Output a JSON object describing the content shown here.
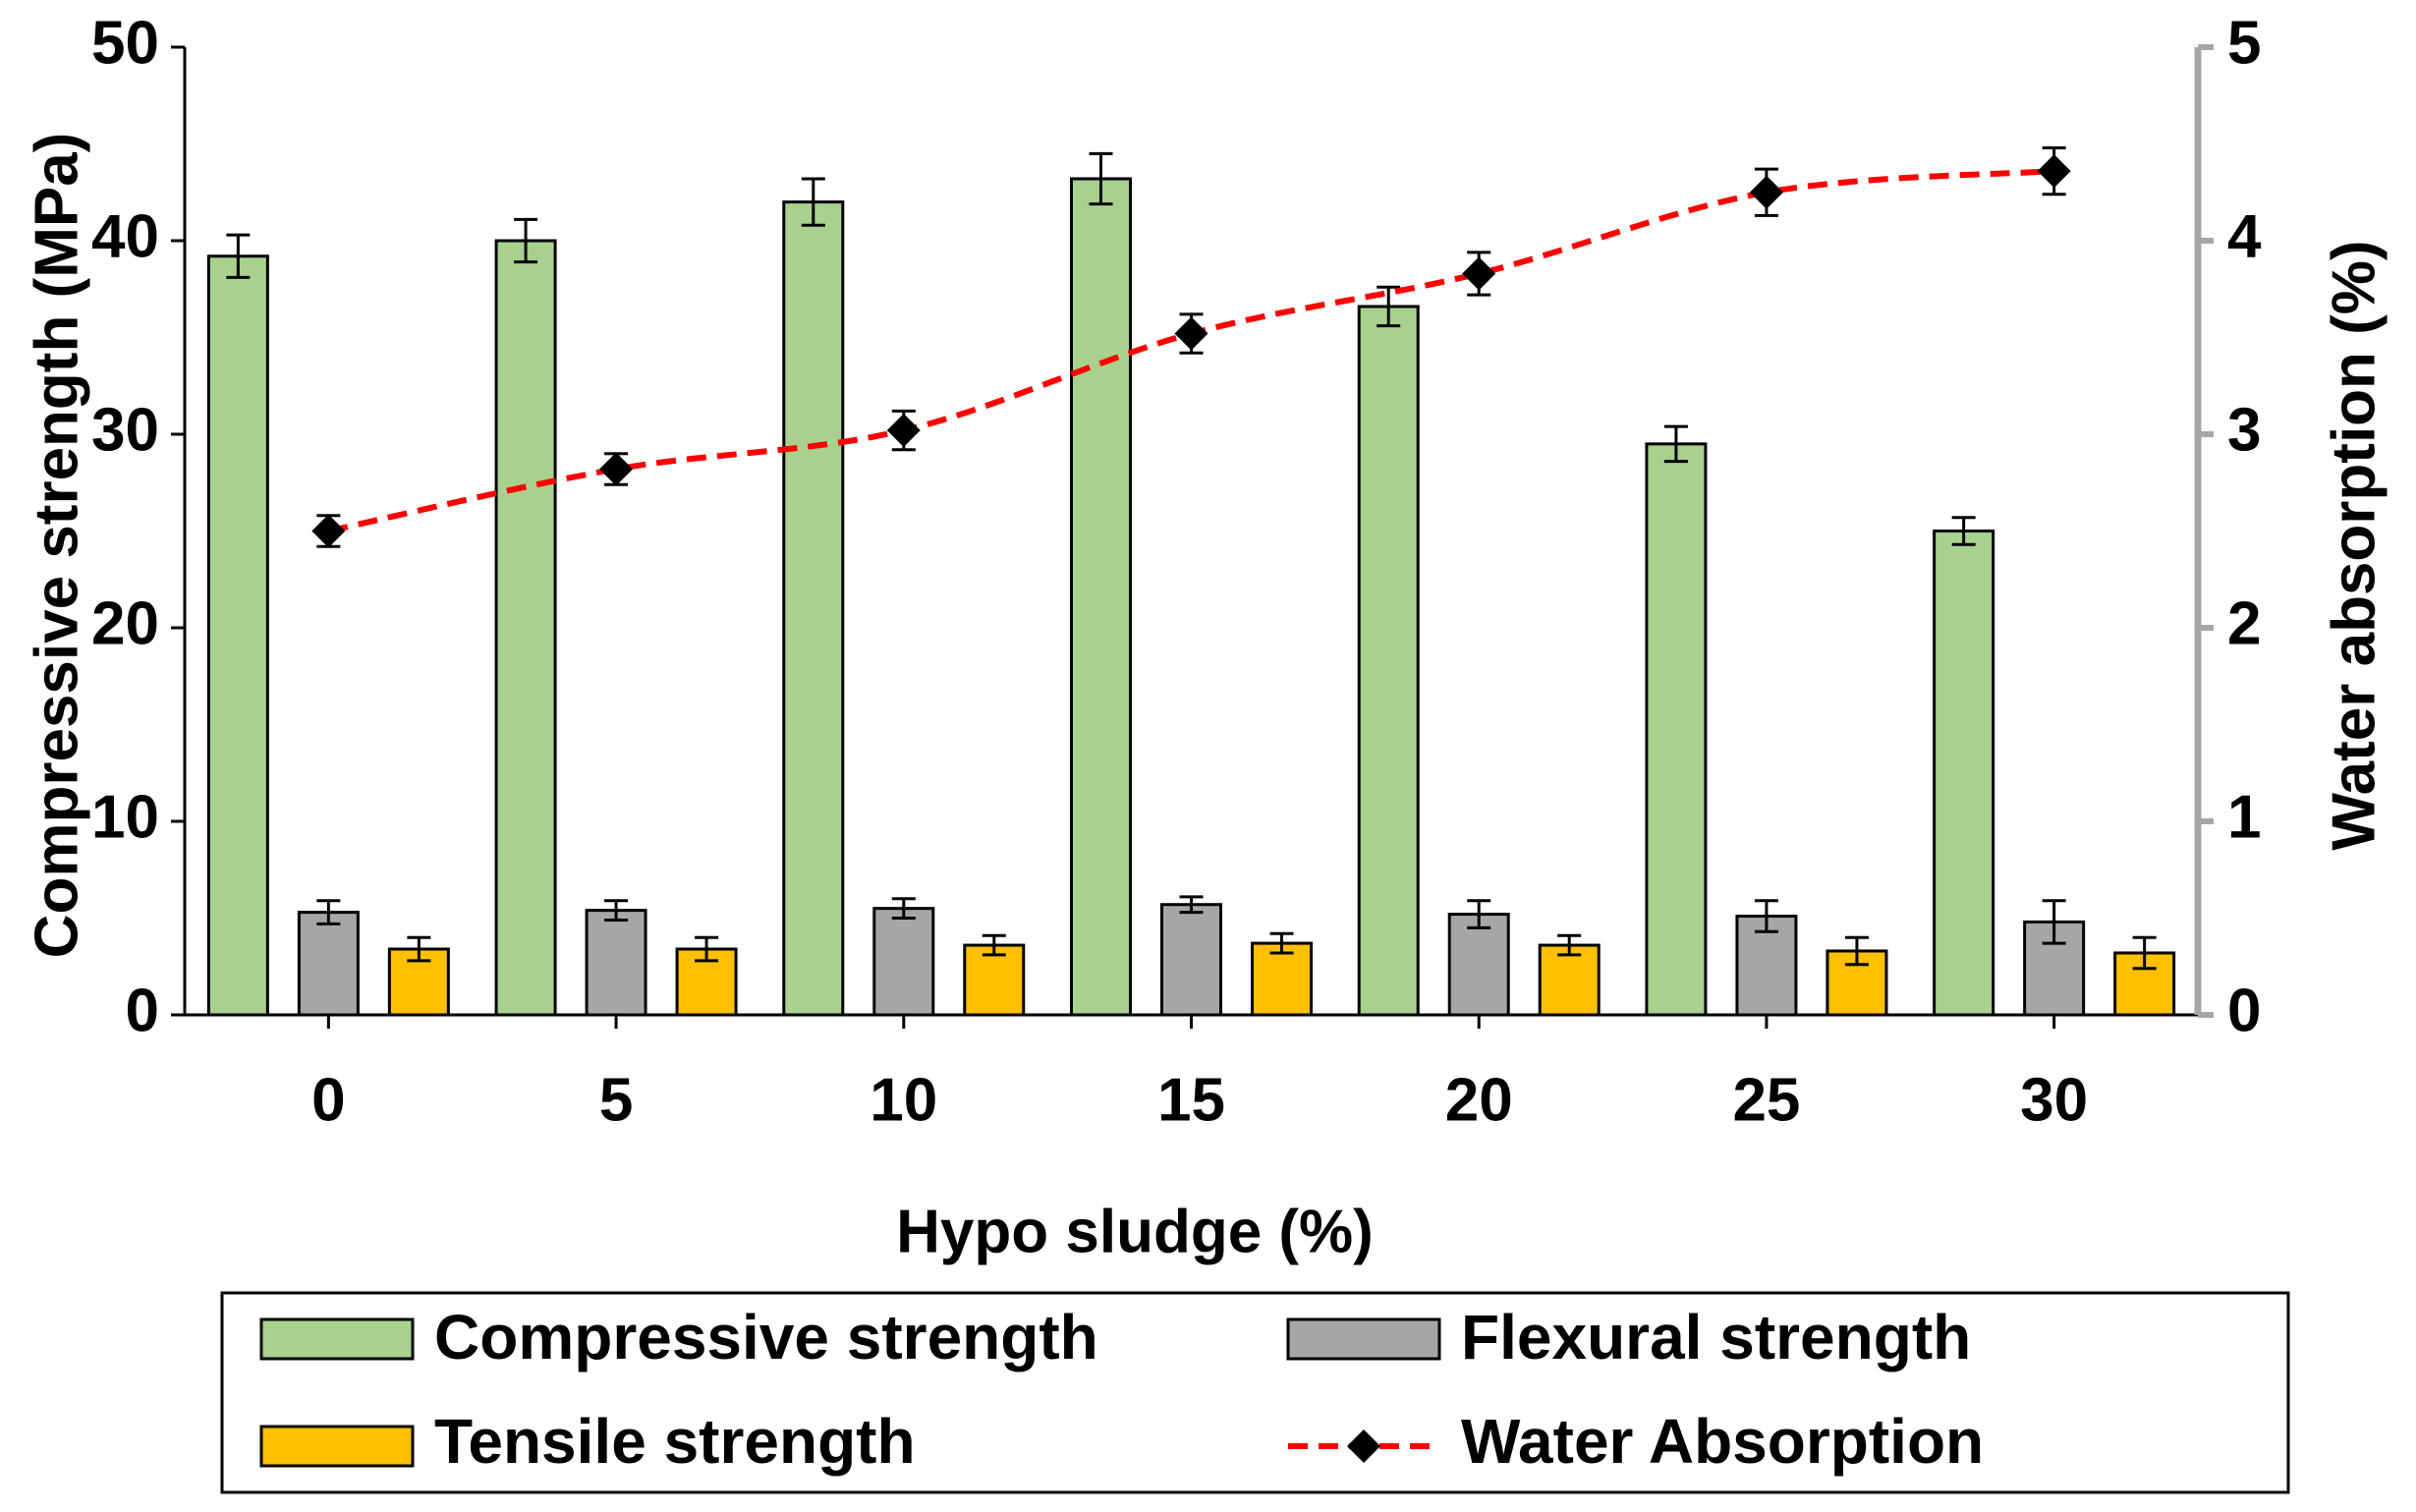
{
  "chart_data": {
    "type": "bar",
    "categories": [
      "0",
      "5",
      "10",
      "15",
      "20",
      "25",
      "30"
    ],
    "series": [
      {
        "name": "Compressive strength",
        "axis": "left",
        "kind": "bar",
        "color": "#a9d18e",
        "values": [
          39.2,
          40.0,
          42.0,
          43.2,
          36.6,
          29.5,
          25.0
        ],
        "errors": [
          1.1,
          1.1,
          1.2,
          1.3,
          1.0,
          0.9,
          0.7
        ]
      },
      {
        "name": "Flexural strength",
        "axis": "left",
        "kind": "bar",
        "color": "#a6a6a6",
        "values": [
          5.3,
          5.4,
          5.5,
          5.7,
          5.2,
          5.1,
          4.8
        ],
        "errors": [
          0.6,
          0.5,
          0.5,
          0.4,
          0.7,
          0.8,
          1.1
        ]
      },
      {
        "name": "Tensile strength",
        "axis": "left",
        "kind": "bar",
        "color": "#ffc000",
        "values": [
          3.4,
          3.4,
          3.6,
          3.7,
          3.6,
          3.3,
          3.2
        ],
        "errors": [
          0.6,
          0.6,
          0.5,
          0.5,
          0.5,
          0.7,
          0.8
        ]
      },
      {
        "name": "Water Absorption",
        "axis": "right",
        "kind": "line",
        "color": "#ff0000",
        "marker_color": "#000000",
        "values": [
          2.5,
          2.82,
          3.02,
          3.52,
          3.83,
          4.25,
          4.36
        ],
        "errors": [
          0.08,
          0.08,
          0.1,
          0.1,
          0.11,
          0.12,
          0.12
        ]
      }
    ],
    "xlabel": "Hypo sludge (%)",
    "ylabel": "Compressive strength (MPa)",
    "y2label": "Water absorption (%)",
    "ylim": [
      0,
      50
    ],
    "y2lim": [
      0,
      5
    ],
    "yticks": [
      "0",
      "10",
      "20",
      "30",
      "40",
      "50"
    ],
    "y2ticks": [
      "0",
      "1",
      "2",
      "3",
      "4",
      "5"
    ],
    "legend_position": "bottom",
    "grid": false
  }
}
